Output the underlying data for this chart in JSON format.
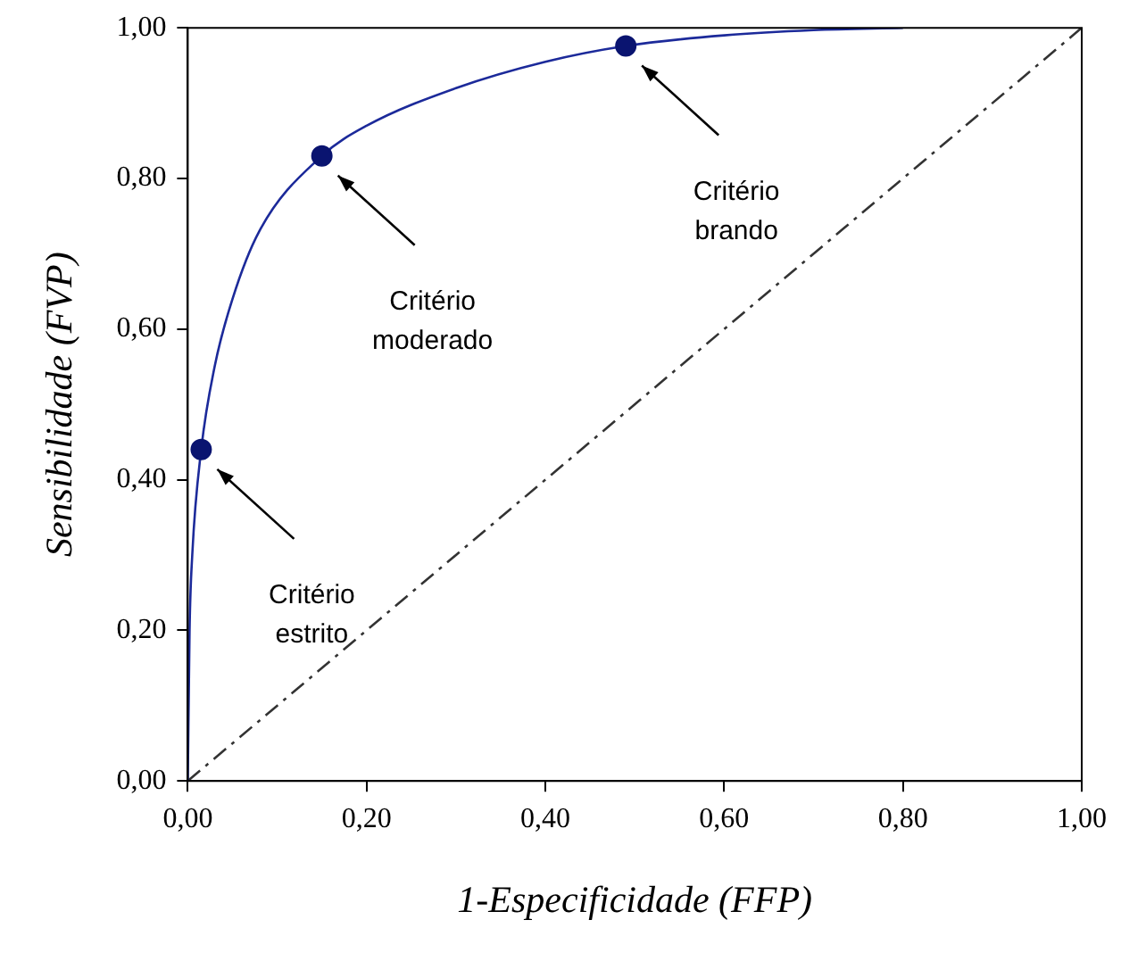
{
  "chart_data": {
    "type": "line",
    "xlabel": "1-Especificidade (FFP)",
    "ylabel": "Sensibilidade (FVP)",
    "xlim": [
      0,
      1
    ],
    "ylim": [
      0,
      1
    ],
    "xticks": [
      {
        "value": 0,
        "label": "0,00"
      },
      {
        "value": 0.2,
        "label": "0,20"
      },
      {
        "value": 0.4,
        "label": "0,40"
      },
      {
        "value": 0.6,
        "label": "0,60"
      },
      {
        "value": 0.8,
        "label": "0,80"
      },
      {
        "value": 1,
        "label": "1,00"
      }
    ],
    "yticks": [
      {
        "value": 0,
        "label": "0,00"
      },
      {
        "value": 0.2,
        "label": "0,20"
      },
      {
        "value": 0.4,
        "label": "0,40"
      },
      {
        "value": 0.6,
        "label": "0,60"
      },
      {
        "value": 0.8,
        "label": "0,80"
      },
      {
        "value": 1,
        "label": "1,00"
      }
    ],
    "grid": false,
    "legend": false,
    "series": [
      {
        "color": "#1c2a9a",
        "marker": "none",
        "line_style": "solid",
        "x": [
          0,
          0.002,
          0.005,
          0.015,
          0.03,
          0.05,
          0.08,
          0.15,
          0.2,
          0.3,
          0.4,
          0.49,
          0.6,
          0.7,
          0.8
        ],
        "values": [
          0,
          0.2,
          0.3,
          0.44,
          0.55,
          0.64,
          0.73,
          0.83,
          0.87,
          0.92,
          0.955,
          0.976,
          0.99,
          0.997,
          1
        ]
      },
      {
        "type": "line",
        "color": "#333333",
        "marker": "none",
        "line_style": "dashed",
        "x": [
          0,
          1
        ],
        "values": [
          0,
          1
        ]
      },
      {
        "type": "scatter",
        "color": "#0a1470",
        "marker": "circle",
        "x": [
          0.015,
          0.15,
          0.49
        ],
        "values": [
          0.44,
          0.83,
          0.976
        ]
      }
    ],
    "annotations": [
      "Critério estrito",
      "Critério moderado",
      "Critério brando"
    ]
  }
}
